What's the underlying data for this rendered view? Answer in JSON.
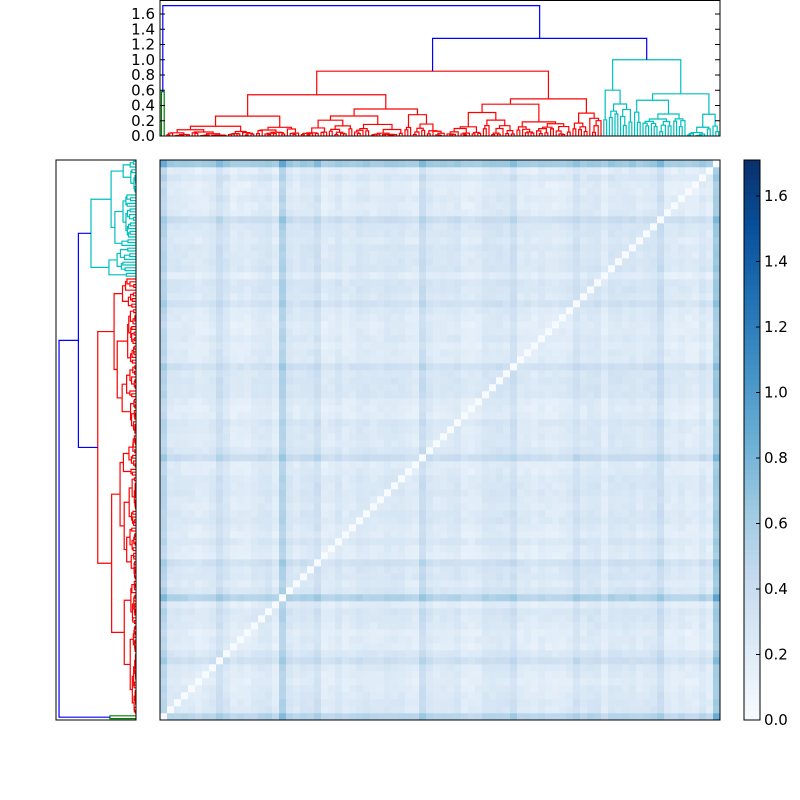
{
  "chart_data": [
    {
      "type": "dendrogram",
      "position": "top",
      "ylim": [
        0,
        1.75
      ],
      "yticks": [
        "0.0",
        "0.2",
        "0.4",
        "0.6",
        "0.8",
        "1.0",
        "1.2",
        "1.4",
        "1.6"
      ],
      "clusters": [
        {
          "color": "#008000",
          "merge_height": 0.58
        },
        {
          "color": "#ff0000",
          "merge_height": 0.85
        },
        {
          "color": "#00bfbf",
          "merge_height": 1.0
        }
      ],
      "link_color_above_threshold": "#0000ff",
      "top_merges": [
        {
          "join": [
            "red",
            "cyan"
          ],
          "height": 1.28
        },
        {
          "join": [
            "green",
            "red+cyan"
          ],
          "height": 1.71
        }
      ]
    },
    {
      "type": "dendrogram",
      "position": "left",
      "note_mirrors_top": true
    },
    {
      "type": "heatmap",
      "colormap": "Blues",
      "vmin": 0.0,
      "vmax": 1.71,
      "diagonal_value": 0.0,
      "typical_value_range": [
        0.1,
        0.5
      ],
      "colorbar_ticks": [
        "0.0",
        "0.2",
        "0.4",
        "0.6",
        "0.8",
        "1.0",
        "1.2",
        "1.4",
        "1.6"
      ],
      "colormap_colors": [
        "#f7fbff",
        "#deebf7",
        "#c6dbef",
        "#9ecae1",
        "#6baed6",
        "#4292c6",
        "#2171b5",
        "#08519c",
        "#08306b"
      ]
    }
  ]
}
